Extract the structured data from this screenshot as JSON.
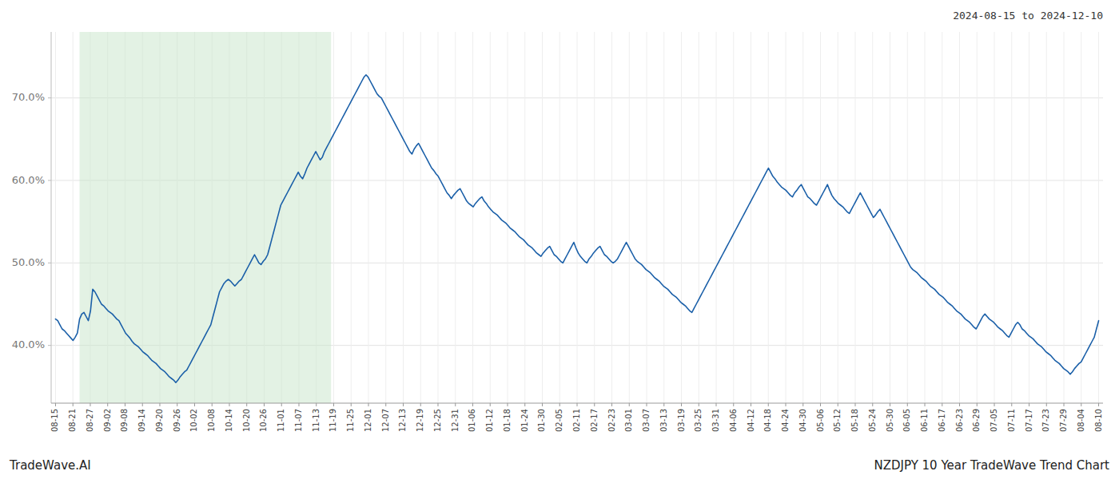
{
  "chart_data": {
    "type": "line",
    "annotations": [
      "2024-08-15 to 2024-12-10",
      "TradeWave.AI",
      "NZDJPY 10 Year TradeWave Trend Chart"
    ],
    "color": "#1a5fa8",
    "grid": true,
    "shade": {
      "start": 11,
      "end": 126,
      "color": "#c8e6c9"
    },
    "xlim": [
      -2,
      479
    ],
    "ylim": [
      33,
      78
    ],
    "yticks": [
      {
        "value": 40,
        "label": "40.0%"
      },
      {
        "value": 50,
        "label": "50.0%"
      },
      {
        "value": 60,
        "label": "60.0%"
      },
      {
        "value": 70,
        "label": "70.0%"
      }
    ],
    "xticks": [
      {
        "value": 0,
        "label": "08-15"
      },
      {
        "value": 7.95,
        "label": "08-21"
      },
      {
        "value": 15.9,
        "label": "08-27"
      },
      {
        "value": 23.85,
        "label": "09-02"
      },
      {
        "value": 31.8,
        "label": "09-08"
      },
      {
        "value": 39.75,
        "label": "09-14"
      },
      {
        "value": 47.7,
        "label": "09-20"
      },
      {
        "value": 55.65,
        "label": "09-26"
      },
      {
        "value": 63.6,
        "label": "10-02"
      },
      {
        "value": 71.55,
        "label": "10-08"
      },
      {
        "value": 79.5,
        "label": "10-14"
      },
      {
        "value": 87.45,
        "label": "10-20"
      },
      {
        "value": 95.4,
        "label": "10-26"
      },
      {
        "value": 103.35,
        "label": "11-01"
      },
      {
        "value": 111.3,
        "label": "11-07"
      },
      {
        "value": 119.25,
        "label": "11-13"
      },
      {
        "value": 127.2,
        "label": "11-19"
      },
      {
        "value": 135.15,
        "label": "11-25"
      },
      {
        "value": 143.1,
        "label": "12-01"
      },
      {
        "value": 151.05,
        "label": "12-07"
      },
      {
        "value": 159,
        "label": "12-13"
      },
      {
        "value": 166.95,
        "label": "12-19"
      },
      {
        "value": 174.9,
        "label": "12-25"
      },
      {
        "value": 182.85,
        "label": "12-31"
      },
      {
        "value": 190.8,
        "label": "01-06"
      },
      {
        "value": 198.75,
        "label": "01-12"
      },
      {
        "value": 206.7,
        "label": "01-18"
      },
      {
        "value": 214.65,
        "label": "01-24"
      },
      {
        "value": 222.6,
        "label": "01-30"
      },
      {
        "value": 230.55,
        "label": "02-05"
      },
      {
        "value": 238.5,
        "label": "02-11"
      },
      {
        "value": 246.45,
        "label": "02-17"
      },
      {
        "value": 254.4,
        "label": "02-23"
      },
      {
        "value": 262.35,
        "label": "03-01"
      },
      {
        "value": 270.3,
        "label": "03-07"
      },
      {
        "value": 278.25,
        "label": "03-13"
      },
      {
        "value": 286.2,
        "label": "03-19"
      },
      {
        "value": 294.15,
        "label": "03-25"
      },
      {
        "value": 302.1,
        "label": "03-31"
      },
      {
        "value": 310.05,
        "label": "04-06"
      },
      {
        "value": 318,
        "label": "04-12"
      },
      {
        "value": 325.95,
        "label": "04-18"
      },
      {
        "value": 333.9,
        "label": "04-24"
      },
      {
        "value": 341.85,
        "label": "04-30"
      },
      {
        "value": 349.8,
        "label": "05-06"
      },
      {
        "value": 357.75,
        "label": "05-12"
      },
      {
        "value": 365.7,
        "label": "05-18"
      },
      {
        "value": 373.65,
        "label": "05-24"
      },
      {
        "value": 381.6,
        "label": "05-30"
      },
      {
        "value": 389.55,
        "label": "06-05"
      },
      {
        "value": 397.5,
        "label": "06-11"
      },
      {
        "value": 405.45,
        "label": "06-17"
      },
      {
        "value": 413.4,
        "label": "06-23"
      },
      {
        "value": 421.35,
        "label": "06-29"
      },
      {
        "value": 429.3,
        "label": "07-05"
      },
      {
        "value": 437.25,
        "label": "07-11"
      },
      {
        "value": 445.2,
        "label": "07-17"
      },
      {
        "value": 453.15,
        "label": "07-23"
      },
      {
        "value": 461.1,
        "label": "07-29"
      },
      {
        "value": 469.05,
        "label": "08-04"
      },
      {
        "value": 477,
        "label": "08-10"
      }
    ],
    "values": [
      43.2,
      43.0,
      42.5,
      42.0,
      41.8,
      41.5,
      41.2,
      40.9,
      40.6,
      41.0,
      41.5,
      43.2,
      43.8,
      44.0,
      43.5,
      43.0,
      44.2,
      46.8,
      46.5,
      46.0,
      45.5,
      45.0,
      44.8,
      44.5,
      44.2,
      44.0,
      43.8,
      43.5,
      43.2,
      43.0,
      42.5,
      42.0,
      41.5,
      41.2,
      40.9,
      40.5,
      40.2,
      40.0,
      39.8,
      39.5,
      39.2,
      39.0,
      38.8,
      38.5,
      38.2,
      38.0,
      37.8,
      37.5,
      37.2,
      37.0,
      36.8,
      36.5,
      36.2,
      36.0,
      35.8,
      35.5,
      35.8,
      36.2,
      36.5,
      36.8,
      37.0,
      37.5,
      38.0,
      38.5,
      39.0,
      39.5,
      40.0,
      40.5,
      41.0,
      41.5,
      42.0,
      42.5,
      43.5,
      44.5,
      45.5,
      46.5,
      47.0,
      47.5,
      47.8,
      48.0,
      47.8,
      47.5,
      47.2,
      47.5,
      47.8,
      48.0,
      48.5,
      49.0,
      49.5,
      50.0,
      50.5,
      51.0,
      50.5,
      50.0,
      49.8,
      50.2,
      50.5,
      51.0,
      52.0,
      53.0,
      54.0,
      55.0,
      56.0,
      57.0,
      57.5,
      58.0,
      58.5,
      59.0,
      59.5,
      60.0,
      60.5,
      61.0,
      60.5,
      60.2,
      60.8,
      61.5,
      62.0,
      62.5,
      63.0,
      63.5,
      63.0,
      62.5,
      62.8,
      63.5,
      64.0,
      64.5,
      65.0,
      65.5,
      66.0,
      66.5,
      67.0,
      67.5,
      68.0,
      68.5,
      69.0,
      69.5,
      70.0,
      70.5,
      71.0,
      71.5,
      72.0,
      72.5,
      72.8,
      72.5,
      72.0,
      71.5,
      71.0,
      70.5,
      70.2,
      70.0,
      69.5,
      69.0,
      68.5,
      68.0,
      67.5,
      67.0,
      66.5,
      66.0,
      65.5,
      65.0,
      64.5,
      64.0,
      63.5,
      63.2,
      63.8,
      64.2,
      64.5,
      64.0,
      63.5,
      63.0,
      62.5,
      62.0,
      61.5,
      61.2,
      60.8,
      60.5,
      60.0,
      59.5,
      59.0,
      58.5,
      58.2,
      57.8,
      58.2,
      58.5,
      58.8,
      59.0,
      58.5,
      58.0,
      57.5,
      57.2,
      57.0,
      56.8,
      57.2,
      57.5,
      57.8,
      58.0,
      57.5,
      57.2,
      56.8,
      56.5,
      56.2,
      56.0,
      55.8,
      55.5,
      55.2,
      55.0,
      54.8,
      54.5,
      54.2,
      54.0,
      53.8,
      53.5,
      53.2,
      53.0,
      52.8,
      52.5,
      52.2,
      52.0,
      51.8,
      51.5,
      51.2,
      51.0,
      50.8,
      51.2,
      51.5,
      51.8,
      52.0,
      51.5,
      51.0,
      50.8,
      50.5,
      50.2,
      50.0,
      50.5,
      51.0,
      51.5,
      52.0,
      52.5,
      51.8,
      51.2,
      50.8,
      50.5,
      50.2,
      50.0,
      50.5,
      50.8,
      51.2,
      51.5,
      51.8,
      52.0,
      51.5,
      51.0,
      50.8,
      50.5,
      50.2,
      50.0,
      50.2,
      50.5,
      51.0,
      51.5,
      52.0,
      52.5,
      52.0,
      51.5,
      51.0,
      50.5,
      50.2,
      50.0,
      49.8,
      49.5,
      49.2,
      49.0,
      48.8,
      48.5,
      48.2,
      48.0,
      47.8,
      47.5,
      47.2,
      47.0,
      46.8,
      46.5,
      46.2,
      46.0,
      45.8,
      45.5,
      45.2,
      45.0,
      44.8,
      44.5,
      44.2,
      44.0,
      44.5,
      45.0,
      45.5,
      46.0,
      46.5,
      47.0,
      47.5,
      48.0,
      48.5,
      49.0,
      49.5,
      50.0,
      50.5,
      51.0,
      51.5,
      52.0,
      52.5,
      53.0,
      53.5,
      54.0,
      54.5,
      55.0,
      55.5,
      56.0,
      56.5,
      57.0,
      57.5,
      58.0,
      58.5,
      59.0,
      59.5,
      60.0,
      60.5,
      61.0,
      61.5,
      61.0,
      60.5,
      60.2,
      59.8,
      59.5,
      59.2,
      59.0,
      58.8,
      58.5,
      58.2,
      58.0,
      58.5,
      58.8,
      59.2,
      59.5,
      59.0,
      58.5,
      58.0,
      57.8,
      57.5,
      57.2,
      57.0,
      57.5,
      58.0,
      58.5,
      59.0,
      59.5,
      58.8,
      58.2,
      57.8,
      57.5,
      57.2,
      57.0,
      56.8,
      56.5,
      56.2,
      56.0,
      56.5,
      57.0,
      57.5,
      58.0,
      58.5,
      58.0,
      57.5,
      57.0,
      56.5,
      56.0,
      55.5,
      55.8,
      56.2,
      56.5,
      56.0,
      55.5,
      55.0,
      54.5,
      54.0,
      53.5,
      53.0,
      52.5,
      52.0,
      51.5,
      51.0,
      50.5,
      50.0,
      49.5,
      49.2,
      49.0,
      48.8,
      48.5,
      48.2,
      48.0,
      47.8,
      47.5,
      47.2,
      47.0,
      46.8,
      46.5,
      46.2,
      46.0,
      45.8,
      45.5,
      45.2,
      45.0,
      44.8,
      44.5,
      44.2,
      44.0,
      43.8,
      43.5,
      43.2,
      43.0,
      42.8,
      42.5,
      42.2,
      42.0,
      42.5,
      43.0,
      43.5,
      43.8,
      43.5,
      43.2,
      43.0,
      42.8,
      42.5,
      42.2,
      42.0,
      41.8,
      41.5,
      41.2,
      41.0,
      41.5,
      42.0,
      42.5,
      42.8,
      42.5,
      42.0,
      41.8,
      41.5,
      41.2,
      41.0,
      40.8,
      40.5,
      40.2,
      40.0,
      39.8,
      39.5,
      39.2,
      39.0,
      38.8,
      38.5,
      38.2,
      38.0,
      37.8,
      37.5,
      37.2,
      37.0,
      36.8,
      36.5,
      36.8,
      37.2,
      37.5,
      37.8,
      38.0,
      38.5,
      39.0,
      39.5,
      40.0,
      40.5,
      41.0,
      42.0,
      43.0
    ]
  }
}
